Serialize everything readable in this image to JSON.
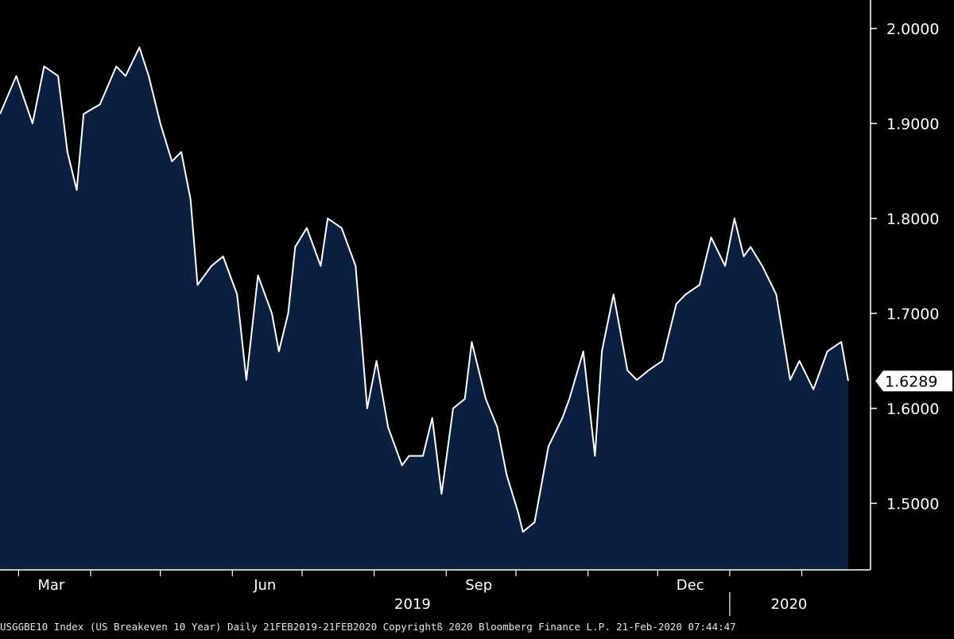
{
  "chart_data": {
    "type": "area",
    "colors": {
      "background": "#000000",
      "fill": "#0b2040",
      "line": "#ffffff",
      "axis": "#ffffff"
    },
    "y_range": [
      1.43,
      2.03
    ],
    "y_ticks": [
      "2.0000",
      "1.9000",
      "1.8000",
      "1.7000",
      "1.6000",
      "1.5000"
    ],
    "last_value_label": "1.6289",
    "x_month_labels": [
      "Mar",
      "Jun",
      "Sep",
      "Dec"
    ],
    "x_year_labels": [
      "2019",
      "2020"
    ],
    "x_range": [
      "2019-02-21",
      "2020-02-21"
    ],
    "series": [
      {
        "x": [
          "2019-02-21",
          "2019-02-28",
          "2019-03-07",
          "2019-03-12",
          "2019-03-18",
          "2019-03-22",
          "2019-03-26",
          "2019-03-29",
          "2019-04-05",
          "2019-04-12",
          "2019-04-16",
          "2019-04-22",
          "2019-04-26",
          "2019-05-01",
          "2019-05-06",
          "2019-05-10",
          "2019-05-14",
          "2019-05-17",
          "2019-05-23",
          "2019-05-28",
          "2019-06-03",
          "2019-06-07",
          "2019-06-12",
          "2019-06-18",
          "2019-06-21",
          "2019-06-25",
          "2019-06-28",
          "2019-07-03",
          "2019-07-09",
          "2019-07-12",
          "2019-07-18",
          "2019-07-24",
          "2019-07-29",
          "2019-08-02",
          "2019-08-07",
          "2019-08-13",
          "2019-08-16",
          "2019-08-22",
          "2019-08-26",
          "2019-08-30",
          "2019-09-04",
          "2019-09-09",
          "2019-09-12",
          "2019-09-18",
          "2019-09-23",
          "2019-09-27",
          "2019-10-02",
          "2019-10-04",
          "2019-10-09",
          "2019-10-15",
          "2019-10-21",
          "2019-10-24",
          "2019-10-30",
          "2019-11-04",
          "2019-11-07",
          "2019-11-12",
          "2019-11-18",
          "2019-11-22",
          "2019-11-27",
          "2019-12-03",
          "2019-12-09",
          "2019-12-13",
          "2019-12-19",
          "2019-12-24",
          "2019-12-30",
          "2020-01-03",
          "2020-01-07",
          "2020-01-10",
          "2020-01-15",
          "2020-01-21",
          "2020-01-27",
          "2020-01-31",
          "2020-02-06",
          "2020-02-12",
          "2020-02-18",
          "2020-02-21"
        ],
        "y": [
          1.91,
          1.95,
          1.9,
          1.96,
          1.95,
          1.87,
          1.83,
          1.91,
          1.92,
          1.96,
          1.95,
          1.98,
          1.95,
          1.9,
          1.86,
          1.87,
          1.82,
          1.73,
          1.75,
          1.76,
          1.72,
          1.63,
          1.74,
          1.7,
          1.66,
          1.7,
          1.77,
          1.79,
          1.75,
          1.8,
          1.79,
          1.75,
          1.6,
          1.65,
          1.58,
          1.54,
          1.55,
          1.55,
          1.59,
          1.51,
          1.6,
          1.61,
          1.67,
          1.61,
          1.58,
          1.53,
          1.49,
          1.47,
          1.48,
          1.56,
          1.59,
          1.61,
          1.66,
          1.55,
          1.66,
          1.72,
          1.64,
          1.63,
          1.64,
          1.65,
          1.71,
          1.72,
          1.73,
          1.78,
          1.75,
          1.8,
          1.76,
          1.77,
          1.75,
          1.72,
          1.63,
          1.65,
          1.62,
          1.66,
          1.67,
          1.6289
        ]
      }
    ]
  },
  "footer": {
    "text": "USGGBE10 Index (US Breakeven 10 Year)  Daily 21FEB2019-21FEB2020  Copyrightß 2020 Bloomberg Finance L.P.  21-Feb-2020 07:44:47"
  }
}
